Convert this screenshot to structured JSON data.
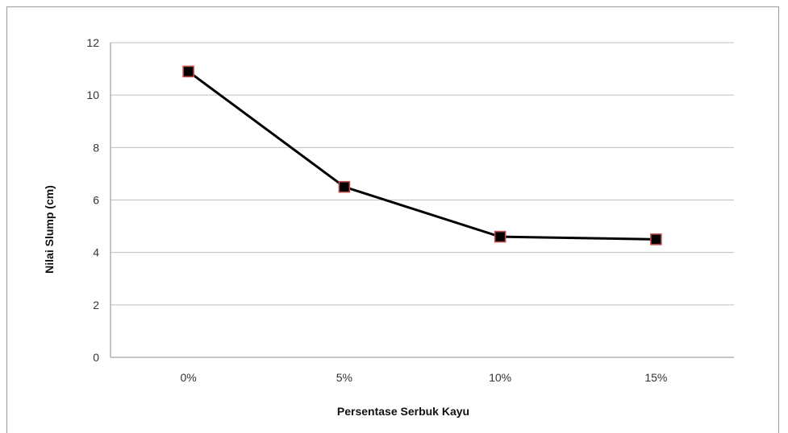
{
  "chart_data": {
    "type": "line",
    "title": "",
    "xlabel": "Persentase Serbuk Kayu",
    "ylabel": "Nilai Slump (cm)",
    "categories": [
      "0%",
      "5%",
      "10%",
      "15%"
    ],
    "series": [
      {
        "values": [
          10.9,
          6.5,
          4.6,
          4.5
        ]
      }
    ],
    "ylim": [
      0,
      12
    ],
    "yticks": [
      0,
      2,
      4,
      6,
      8,
      10,
      12
    ],
    "grid": true,
    "legend": "none",
    "colors": {
      "line": "#000000",
      "marker_fill": "#000000",
      "marker_edge": "#c0504d",
      "grid": "#bfbfbf"
    }
  }
}
